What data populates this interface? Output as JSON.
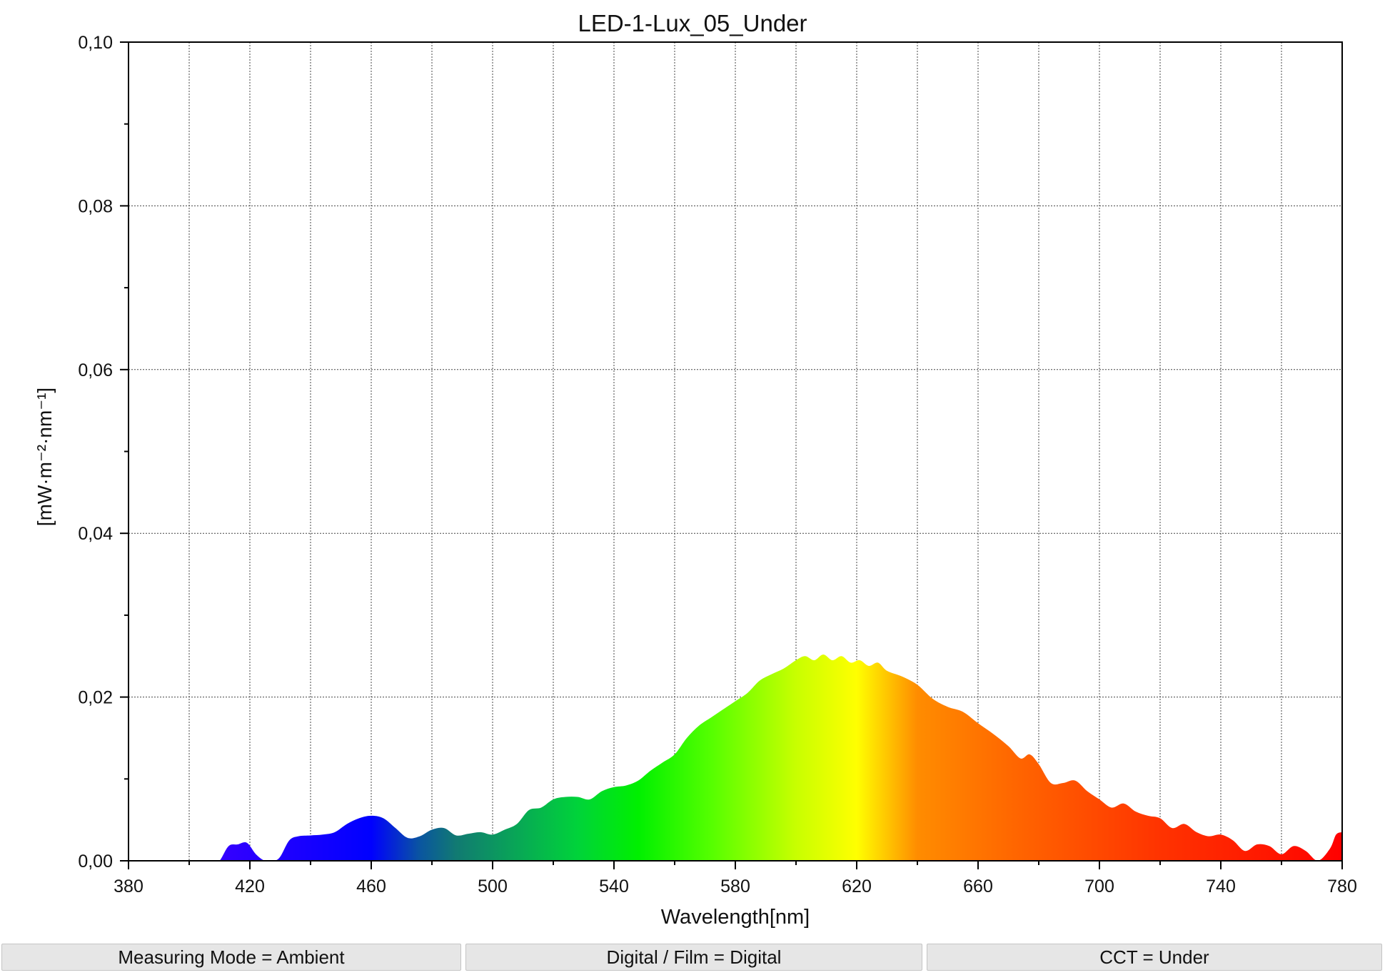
{
  "chart_data": {
    "type": "area",
    "title": "LED-1-Lux_05_Under",
    "xlabel": "Wavelength[nm]",
    "ylabel": "[mW·m⁻²·nm⁻¹]",
    "xlim": [
      380,
      780
    ],
    "ylim": [
      0,
      0.1
    ],
    "x_ticks": [
      380,
      420,
      460,
      500,
      540,
      580,
      620,
      660,
      700,
      740,
      780
    ],
    "x_tick_labels": [
      "380",
      "420",
      "460",
      "500",
      "540",
      "580",
      "620",
      "660",
      "700",
      "740",
      "780"
    ],
    "y_ticks": [
      0,
      0.02,
      0.04,
      0.06,
      0.08,
      0.1
    ],
    "y_tick_labels": [
      "0,00",
      "0,02",
      "0,04",
      "0,06",
      "0,08",
      "0,10"
    ],
    "grid": true,
    "fill": "visible-spectrum gradient",
    "series": [
      {
        "x": [
          380,
          408,
          410,
          413,
          416,
          419,
          422,
          425,
          428,
          430,
          433,
          436,
          440,
          444,
          448,
          452,
          456,
          460,
          464,
          468,
          472,
          476,
          480,
          484,
          488,
          492,
          496,
          500,
          504,
          508,
          512,
          516,
          520,
          524,
          528,
          532,
          536,
          540,
          544,
          548,
          552,
          556,
          560,
          564,
          568,
          572,
          576,
          580,
          584,
          588,
          592,
          596,
          600,
          603,
          606,
          609,
          612,
          615,
          618,
          621,
          624,
          627,
          630,
          635,
          640,
          645,
          650,
          655,
          660,
          665,
          670,
          674,
          677,
          680,
          684,
          688,
          692,
          696,
          700,
          704,
          708,
          712,
          716,
          720,
          724,
          728,
          732,
          736,
          740,
          744,
          748,
          752,
          756,
          760,
          764,
          768,
          772,
          776,
          778,
          780
        ],
        "values": [
          0,
          0,
          0,
          0.0018,
          0.002,
          0.0022,
          0.0008,
          0,
          0,
          0.0005,
          0.0025,
          0.003,
          0.0031,
          0.0032,
          0.0035,
          0.0045,
          0.0052,
          0.0055,
          0.0052,
          0.004,
          0.0028,
          0.003,
          0.0038,
          0.004,
          0.0031,
          0.0033,
          0.0035,
          0.0032,
          0.0038,
          0.0045,
          0.0062,
          0.0065,
          0.0075,
          0.0078,
          0.0078,
          0.0075,
          0.0085,
          0.009,
          0.0092,
          0.0098,
          0.011,
          0.012,
          0.013,
          0.015,
          0.0165,
          0.0175,
          0.0185,
          0.0195,
          0.0205,
          0.022,
          0.0228,
          0.0235,
          0.0245,
          0.025,
          0.0245,
          0.0252,
          0.0245,
          0.025,
          0.0242,
          0.0245,
          0.0238,
          0.0242,
          0.0232,
          0.0225,
          0.0215,
          0.0198,
          0.0188,
          0.0182,
          0.0168,
          0.0155,
          0.014,
          0.0125,
          0.013,
          0.0118,
          0.0095,
          0.0095,
          0.0098,
          0.0085,
          0.0075,
          0.0065,
          0.007,
          0.006,
          0.0055,
          0.0052,
          0.004,
          0.0045,
          0.0035,
          0.003,
          0.0032,
          0.0025,
          0.0012,
          0.002,
          0.0018,
          0.0008,
          0.0018,
          0.0012,
          0.0,
          0.0015,
          0.0032,
          0.0035
        ]
      }
    ]
  },
  "footer": {
    "cells": [
      "Measuring Mode = Ambient",
      "Digital / Film = Digital",
      "CCT = Under"
    ]
  },
  "colors": {
    "spectrum_stops": [
      "#5a00ff",
      "#3300ff",
      "#0000ff",
      "#0a55a0",
      "#117a72",
      "#00d33a",
      "#00f000",
      "#55ff00",
      "#c8ff00",
      "#ffff00",
      "#ff8c00",
      "#ff6600",
      "#ff3300",
      "#ff1a00",
      "#ff0000"
    ]
  }
}
